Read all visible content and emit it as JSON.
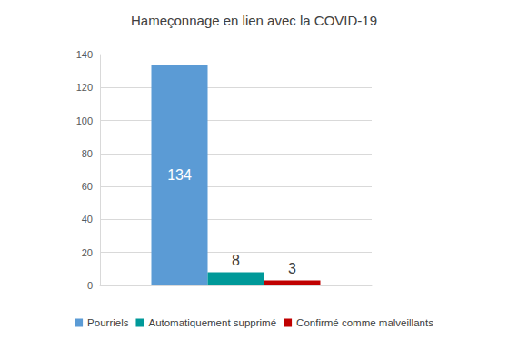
{
  "chart_data": {
    "type": "bar",
    "title": "Hameçonnage en lien avec la COVID-19",
    "categories": [
      null
    ],
    "series": [
      {
        "name": "Pourriels",
        "color": "#5B9BD5",
        "values": [
          134
        ]
      },
      {
        "name": "Automatiquement supprimé",
        "color": "#009999",
        "values": [
          8
        ]
      },
      {
        "name": "Confirmé comme malveillants",
        "color": "#C00000",
        "values": [
          3
        ]
      }
    ],
    "ylim": [
      0,
      140
    ],
    "yticks": [
      0,
      20,
      40,
      60,
      80,
      100,
      120,
      140
    ],
    "grid": true,
    "legend": "bottom",
    "data_labels": true
  }
}
